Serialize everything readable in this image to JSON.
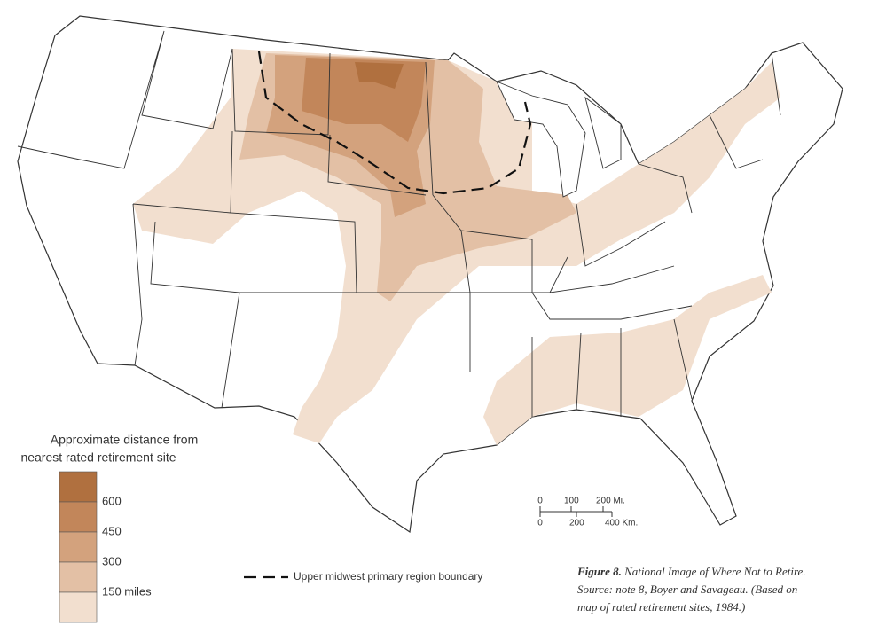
{
  "legend": {
    "title_lines": [
      "Approximate distance from",
      "nearest rated retirement site"
    ],
    "classes": [
      {
        "label": "600",
        "color": "#c2865a"
      },
      {
        "label": "450",
        "color": "#d3a27d"
      },
      {
        "label": "300",
        "color": "#e3c0a5"
      },
      {
        "label": "150 miles",
        "color": "#f2dfcf"
      }
    ],
    "top_color": "#b0703f"
  },
  "boundary_legend": "Upper midwest primary region boundary",
  "scale_bar": {
    "miles": [
      "0",
      "100",
      "200 Mi."
    ],
    "km": [
      "0",
      "200",
      "400 Km."
    ]
  },
  "caption": {
    "figure": "Figure 8.",
    "title": "National Image of Where Not to Retire.",
    "source_lines": [
      "Source: note 8, Boyer and Savageau. (Based on",
      "map of rated retirement sites, 1984.)"
    ]
  }
}
